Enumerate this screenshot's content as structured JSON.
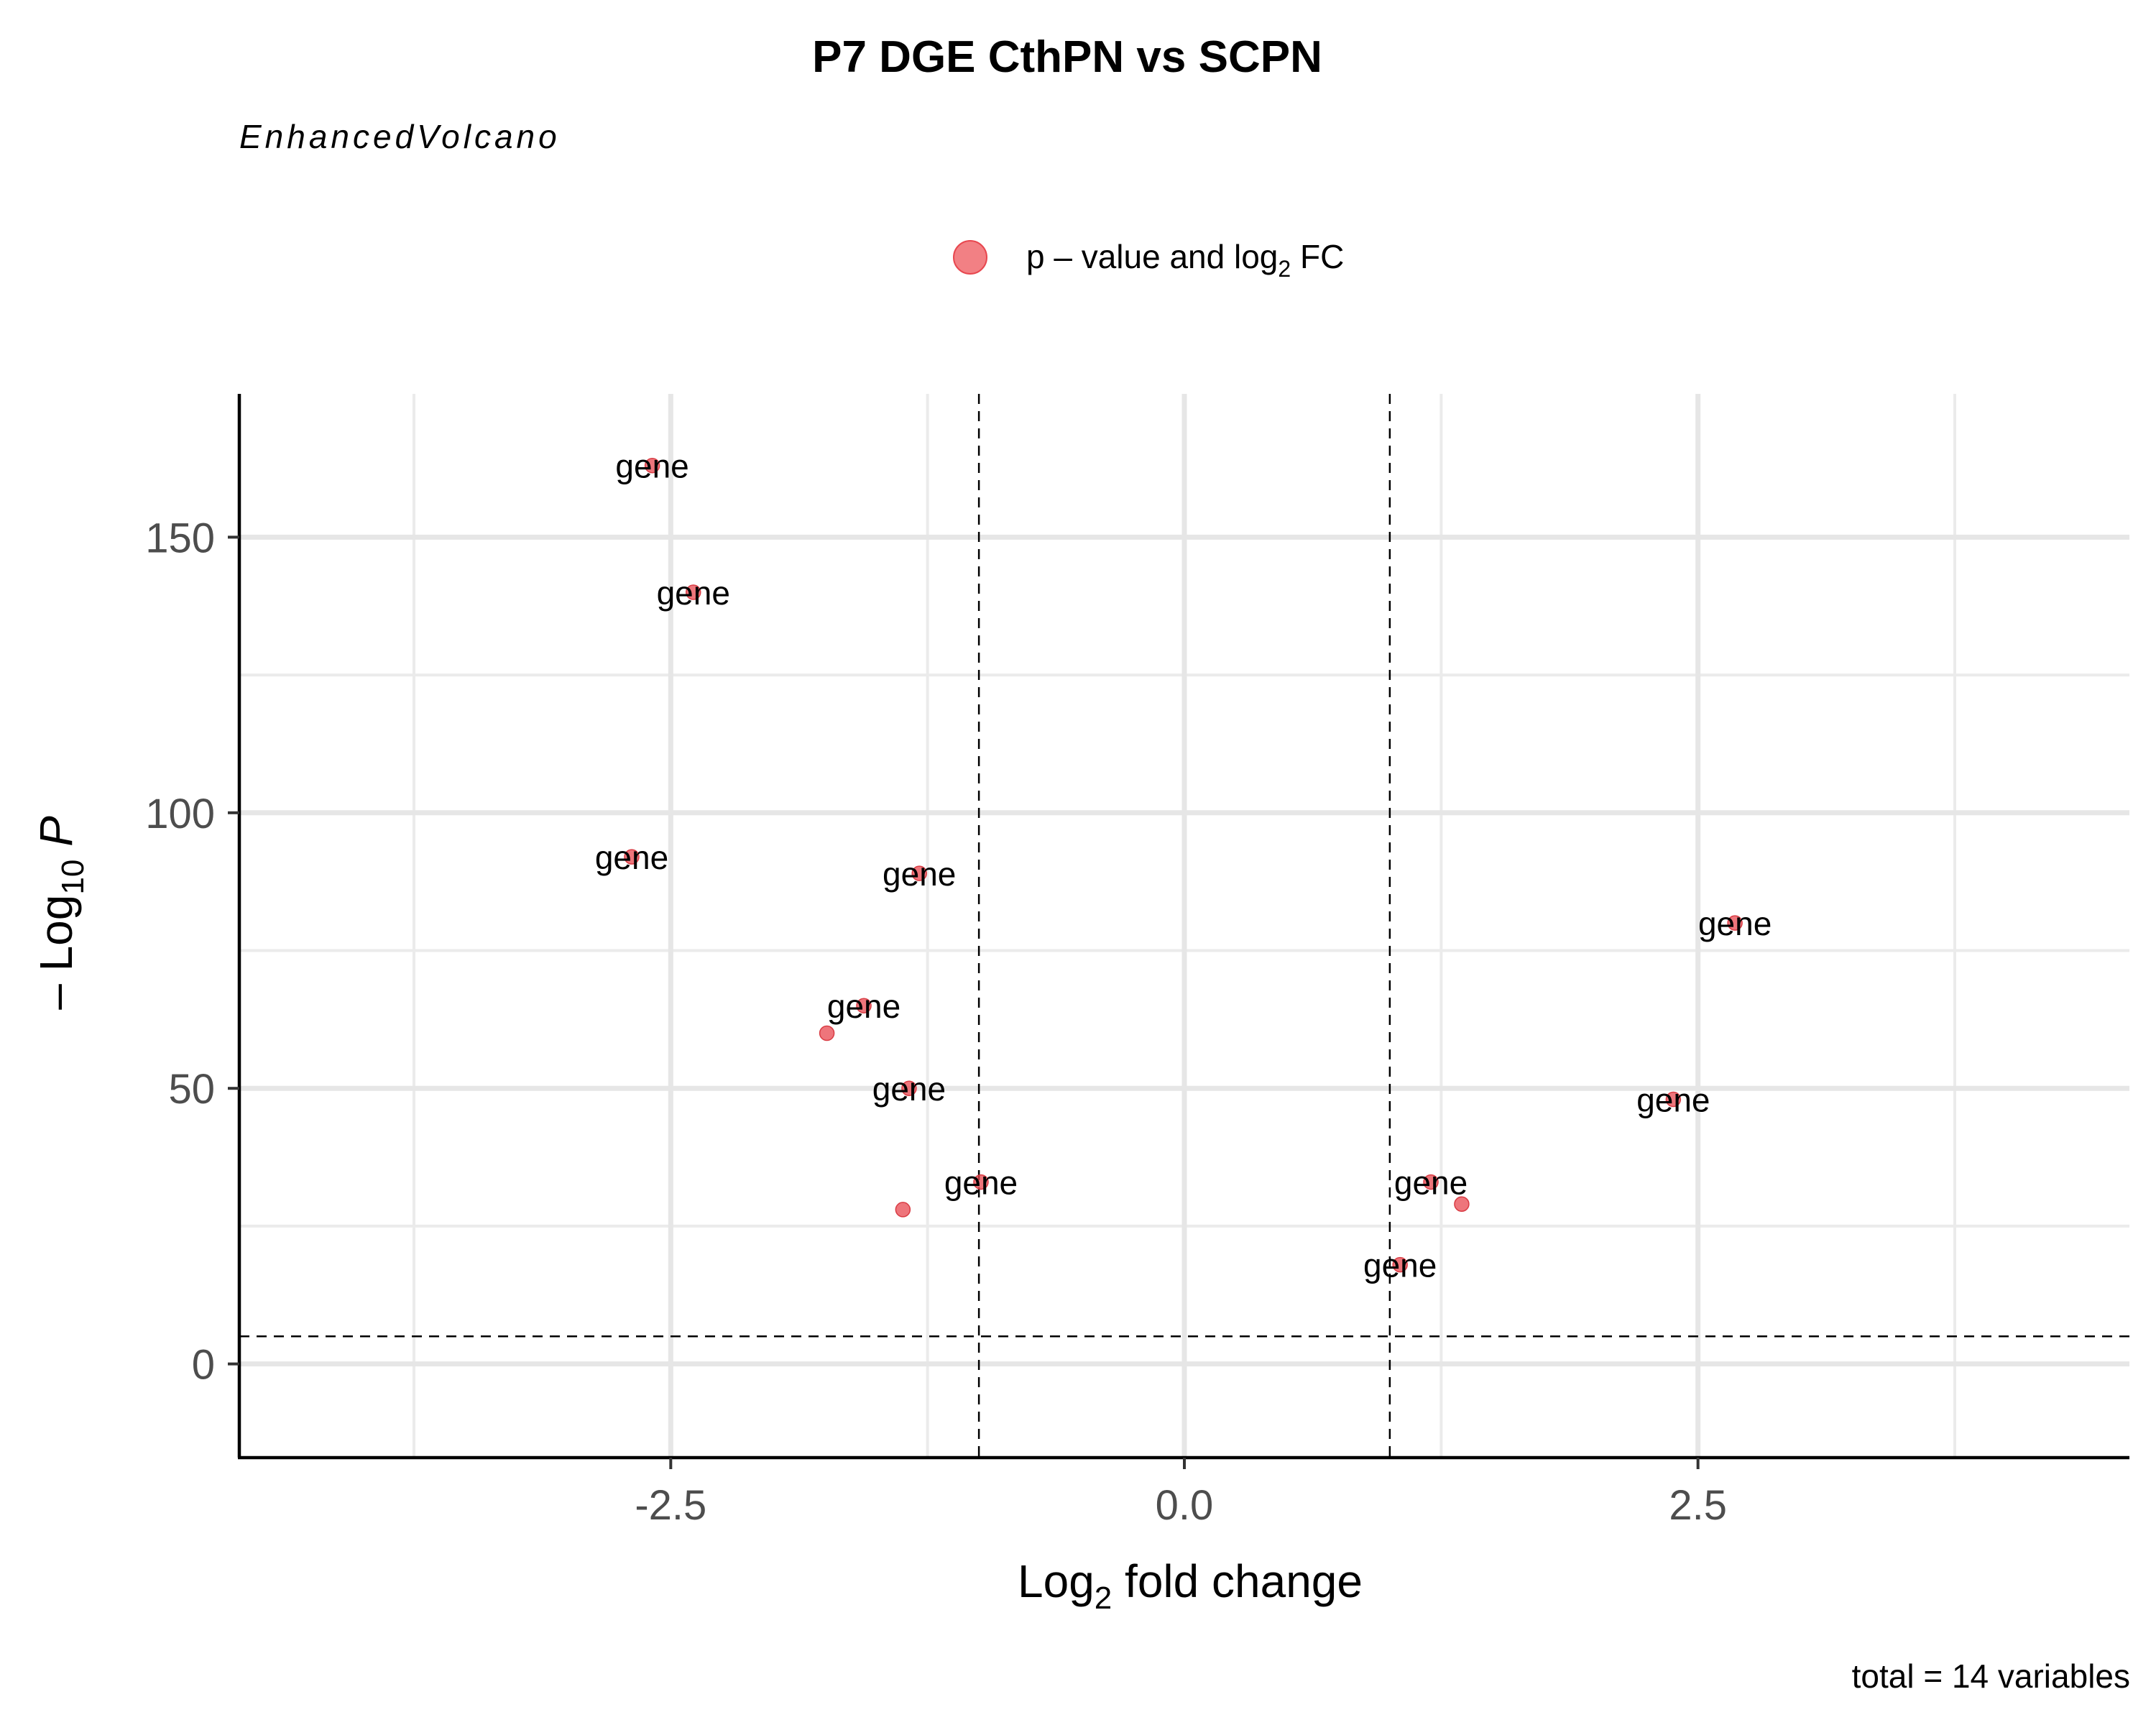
{
  "chart_data": {
    "type": "scatter",
    "title": "P7 DGE CthPN vs SCPN",
    "subtitle": "EnhancedVolcano",
    "legend": {
      "label_prefix": "p – value and log",
      "label_sub": "2",
      "label_suffix": " FC",
      "color": "#F06A6F",
      "placement": "top"
    },
    "xlabel": {
      "prefix": "Log",
      "sub": "2",
      "suffix": " fold change"
    },
    "ylabel": {
      "prefix": "– Log",
      "sub": "10",
      "suffix": " P"
    },
    "xlim": [
      -4.6,
      4.6
    ],
    "ylim": [
      -17,
      176
    ],
    "x_ticks": [
      {
        "value": -2.5,
        "label": "-2.5"
      },
      {
        "value": 0.0,
        "label": "0.0"
      },
      {
        "value": 2.5,
        "label": "2.5"
      }
    ],
    "y_ticks": [
      {
        "value": 0,
        "label": "0"
      },
      {
        "value": 50,
        "label": "50"
      },
      {
        "value": 100,
        "label": "100"
      },
      {
        "value": 150,
        "label": "150"
      }
    ],
    "x_minor_gridlines": [
      -3.75,
      -1.25,
      1.25,
      3.75
    ],
    "y_minor_gridlines": [
      25,
      75,
      125
    ],
    "fc_cutoff": [
      -1,
      1
    ],
    "p_cutoff": 5,
    "grid": true,
    "point_color": "#E8474F",
    "points": [
      {
        "x": -2.59,
        "y": 163,
        "label": "gene"
      },
      {
        "x": -2.39,
        "y": 140,
        "label": "gene"
      },
      {
        "x": -2.69,
        "y": 92,
        "label": "gene"
      },
      {
        "x": -1.29,
        "y": 89,
        "label": "gene"
      },
      {
        "x": -1.56,
        "y": 65,
        "label": "gene"
      },
      {
        "x": -1.74,
        "y": 60,
        "label": ""
      },
      {
        "x": -1.34,
        "y": 50,
        "label": "gene"
      },
      {
        "x": -0.99,
        "y": 33,
        "label": "gene"
      },
      {
        "x": -1.37,
        "y": 28,
        "label": ""
      },
      {
        "x": 2.68,
        "y": 80,
        "label": "gene"
      },
      {
        "x": 2.38,
        "y": 48,
        "label": "gene"
      },
      {
        "x": 1.2,
        "y": 33,
        "label": "gene"
      },
      {
        "x": 1.35,
        "y": 29,
        "label": ""
      },
      {
        "x": 1.05,
        "y": 18,
        "label": "gene"
      }
    ],
    "caption": "total = 14 variables"
  }
}
